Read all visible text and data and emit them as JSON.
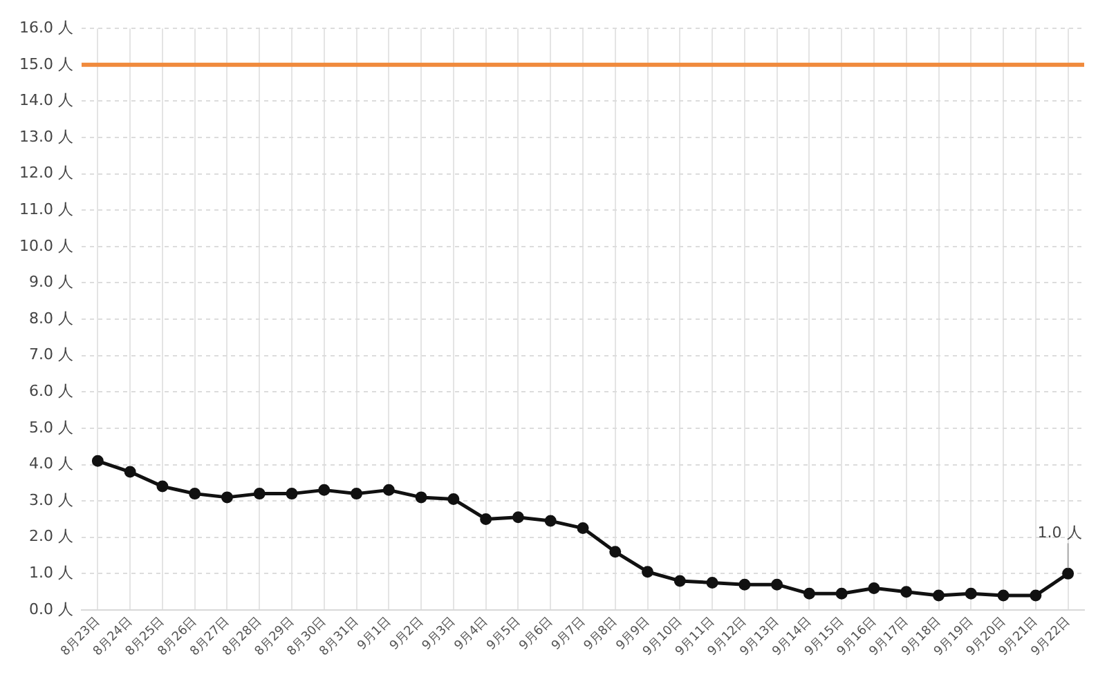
{
  "chart_data": {
    "type": "line",
    "categories": [
      "8月23日",
      "8月24日",
      "8月25日",
      "8月26日",
      "8月27日",
      "8月28日",
      "8月29日",
      "8月30日",
      "8月31日",
      "9月1日",
      "9月2日",
      "9月3日",
      "9月4日",
      "9月5日",
      "9月6日",
      "9月7日",
      "9月8日",
      "9月9日",
      "9月10日",
      "9月11日",
      "9月12日",
      "9月13日",
      "9月14日",
      "9月15日",
      "9月16日",
      "9月17日",
      "9月18日",
      "9月19日",
      "9月20日",
      "9月21日",
      "9月22日"
    ],
    "series": [
      {
        "color": "#111111",
        "values": [
          4.1,
          3.8,
          3.4,
          3.2,
          3.1,
          3.2,
          3.2,
          3.3,
          3.2,
          3.3,
          3.1,
          3.05,
          2.5,
          2.55,
          2.45,
          2.25,
          1.6,
          1.05,
          0.8,
          0.75,
          0.7,
          0.7,
          0.45,
          0.45,
          0.6,
          0.5,
          0.4,
          0.45,
          0.4,
          0.4,
          1.0
        ],
        "value_labels": [
          null,
          null,
          null,
          null,
          null,
          null,
          null,
          null,
          null,
          null,
          null,
          null,
          null,
          null,
          null,
          null,
          null,
          null,
          null,
          null,
          null,
          null,
          null,
          null,
          null,
          null,
          null,
          null,
          null,
          null,
          "1.0 人"
        ]
      }
    ],
    "ylim": [
      0,
      16
    ],
    "yticks": [
      {
        "value": 0,
        "label": "0.0 人"
      },
      {
        "value": 1,
        "label": "1.0 人"
      },
      {
        "value": 2,
        "label": "2.0 人"
      },
      {
        "value": 3,
        "label": "3.0 人"
      },
      {
        "value": 4,
        "label": "4.0 人"
      },
      {
        "value": 5,
        "label": "5.0 人"
      },
      {
        "value": 6,
        "label": "6.0 人"
      },
      {
        "value": 7,
        "label": "7.0 人"
      },
      {
        "value": 8,
        "label": "8.0 人"
      },
      {
        "value": 9,
        "label": "9.0 人"
      },
      {
        "value": 10,
        "label": "10.0 人"
      },
      {
        "value": 11,
        "label": "11.0 人"
      },
      {
        "value": 12,
        "label": "12.0 人"
      },
      {
        "value": 13,
        "label": "13.0 人"
      },
      {
        "value": 14,
        "label": "14.0 人"
      },
      {
        "value": 15,
        "label": "15.0 人"
      },
      {
        "value": 16,
        "label": "16.0 人"
      }
    ],
    "ref_lines": [
      {
        "axis": "y",
        "value": 15,
        "color": "#f08a3c"
      }
    ],
    "grid": true,
    "legend": false,
    "marker": "circle",
    "line_style": "solid"
  }
}
